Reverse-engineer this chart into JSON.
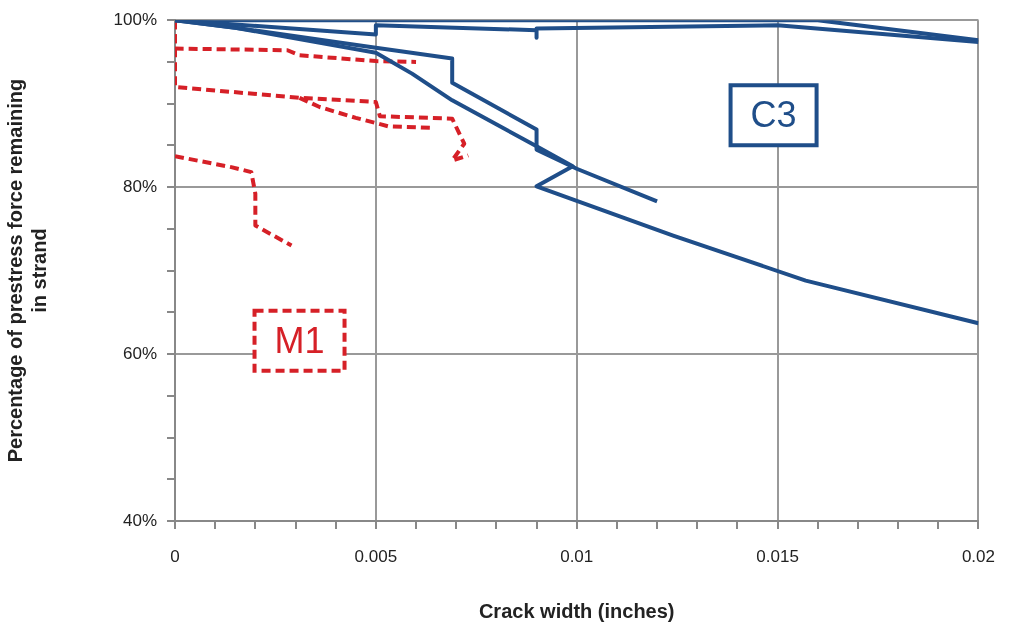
{
  "chart_data": {
    "type": "line",
    "xlabel": "Crack width (inches)",
    "ylabel": "Percentage of prestress force remaining in strand",
    "xlim": [
      0,
      0.02
    ],
    "ylim": [
      40,
      100
    ],
    "xticks": [
      0,
      {
        "value": 0.001,
        "label": null
      },
      {
        "value": 0.002,
        "label": null
      },
      {
        "value": 0.003,
        "label": null
      },
      {
        "value": 0.004,
        "label": null
      },
      0.005,
      {
        "value": 0.006,
        "label": null
      },
      {
        "value": 0.007,
        "label": null
      },
      {
        "value": 0.008,
        "label": null
      },
      {
        "value": 0.009,
        "label": null
      },
      0.01,
      {
        "value": 0.011,
        "label": null
      },
      {
        "value": 0.012,
        "label": null
      },
      {
        "value": 0.013,
        "label": null
      },
      {
        "value": 0.014,
        "label": null
      },
      0.015,
      {
        "value": 0.016,
        "label": null
      },
      {
        "value": 0.017,
        "label": null
      },
      {
        "value": 0.018,
        "label": null
      },
      {
        "value": 0.019,
        "label": null
      },
      0.02
    ],
    "yticks": [
      {
        "value": 40,
        "label": "40%"
      },
      {
        "value": 45,
        "label": null
      },
      {
        "value": 50,
        "label": null
      },
      {
        "value": 55,
        "label": null
      },
      {
        "value": 60,
        "label": "60%"
      },
      {
        "value": 65,
        "label": null
      },
      {
        "value": 70,
        "label": null
      },
      {
        "value": 75,
        "label": null
      },
      {
        "value": 80,
        "label": "80%"
      },
      {
        "value": 85,
        "label": null
      },
      {
        "value": 90,
        "label": null
      },
      {
        "value": 95,
        "label": null
      },
      {
        "value": 100,
        "label": "100%"
      }
    ],
    "grid": true,
    "legend": false,
    "marker": "none",
    "series": [
      {
        "color": "#1f4e89",
        "line_style": "solid",
        "x": [
          0,
          0.005,
          0.005,
          0.009,
          0.009,
          0.009,
          0.015,
          0.02
        ],
        "values": [
          100,
          98.3,
          99.4,
          98.8,
          97.9,
          99.0,
          99.4,
          97.4
        ]
      },
      {
        "color": "#1f4e89",
        "line_style": "solid",
        "x": [
          0,
          0.016,
          0.02
        ],
        "values": [
          100,
          100,
          97.6
        ]
      },
      {
        "color": "#1f4e89",
        "line_style": "solid",
        "x": [
          0,
          0.0015,
          0.005,
          0.0069,
          0.0069,
          0.009,
          0.009,
          0.01,
          0.012
        ],
        "values": [
          100,
          99.1,
          96.7,
          95.4,
          92.5,
          86.9,
          84.5,
          82.2,
          78.3
        ]
      },
      {
        "color": "#1f4e89",
        "line_style": "solid",
        "x": [
          0,
          0.0015,
          0.005,
          0.0059,
          0.0069,
          0.009,
          0.0099,
          0.009,
          0.0124,
          0.0157,
          0.02
        ],
        "values": [
          100,
          99.1,
          96.1,
          93.6,
          90.4,
          84.9,
          82.5,
          80.1,
          74.2,
          68.8,
          63.7
        ]
      },
      {
        "color": "#d62027",
        "line_style": "dashed",
        "x": [
          0,
          0,
          0.0028,
          0.0031,
          0.005,
          0.006
        ],
        "values": [
          100,
          96.6,
          96.4,
          95.8,
          95.1,
          95.0
        ]
      },
      {
        "color": "#d62027",
        "line_style": "dashed",
        "x": [
          0,
          0,
          0.0031,
          0.005,
          0.0051,
          0.0069,
          0.0072,
          0.0069,
          0.0073
        ],
        "values": [
          100,
          92.0,
          90.7,
          90.2,
          88.5,
          88.2,
          85.2,
          83.2,
          83.8
        ]
      },
      {
        "color": "#d62027",
        "line_style": "dashed",
        "x": [
          0.0031,
          0.0036,
          0.0045,
          0.0053,
          0.0064
        ],
        "values": [
          90.7,
          89.6,
          88.3,
          87.3,
          87.1
        ]
      },
      {
        "color": "#d62027",
        "line_style": "dashed",
        "x": [
          0,
          0.0014,
          0.0019,
          0.002,
          0.002,
          0.0029
        ],
        "values": [
          83.7,
          82.4,
          81.8,
          79.2,
          75.4,
          73.0
        ]
      }
    ],
    "annotations": [
      "C3",
      "M1"
    ]
  }
}
